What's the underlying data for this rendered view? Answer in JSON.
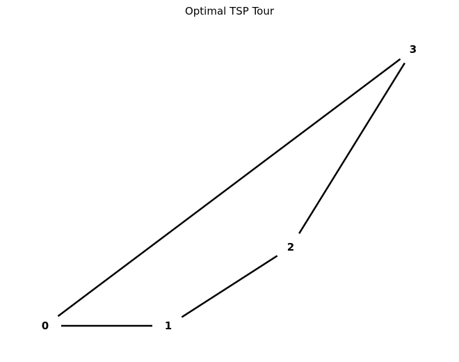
{
  "title": "Optimal TSP Tour",
  "graph": {
    "nodes": [
      {
        "id": "0",
        "label": "0"
      },
      {
        "id": "1",
        "label": "1"
      },
      {
        "id": "2",
        "label": "2"
      },
      {
        "id": "3",
        "label": "3"
      }
    ],
    "edges": [
      {
        "from": "0",
        "to": "1"
      },
      {
        "from": "1",
        "to": "2"
      },
      {
        "from": "2",
        "to": "3"
      },
      {
        "from": "3",
        "to": "0"
      }
    ],
    "edge_color": "#000000",
    "label_color": "#000000"
  }
}
